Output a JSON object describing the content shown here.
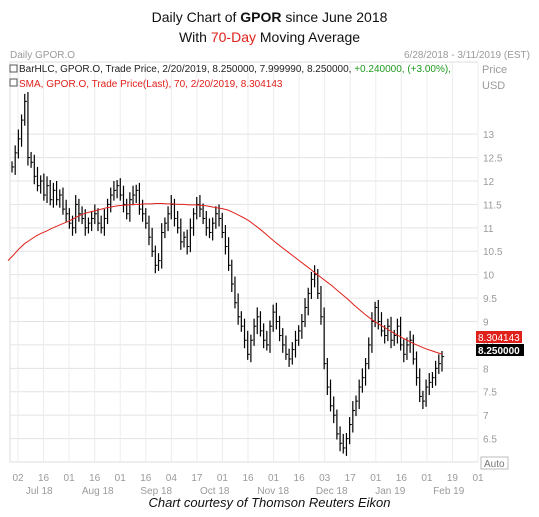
{
  "header": {
    "line1_pre": "Daily Chart of ",
    "line1_bold": "GPOR",
    "line1_post": " since June 2018",
    "line2_pre": "With ",
    "line2_red": "70-Day",
    "line2_post": " Moving Average"
  },
  "panel": {
    "name": "Daily GPOR.O",
    "date_range": "6/28/2018 - 3/11/2019 (EST)",
    "axis_title_1": "Price",
    "axis_title_2": "USD",
    "legend_bar_pre": "BarHLC, GPOR.O, Trade Price, 2/20/2019, 8.250000, 7.999990, 8.250000, ",
    "legend_bar_change": "+0.240000, (+3.00%),",
    "legend_sma": "SMA, GPOR.O, Trade Price(Last), 70, 2/20/2019, 8.304143",
    "sma_label": "8.304143",
    "price_label": "8.250000",
    "auto_label": "Auto"
  },
  "credit": "Chart courtesy of Thomson Reuters Eikon",
  "colors": {
    "bars": "#000000",
    "sma": "#e0201b",
    "grid": "#dcdcdc",
    "text_gray": "#9a9a9a"
  },
  "chart_data": {
    "type": "line",
    "series": [
      {
        "name": "BarHLC, GPOR.O",
        "kind": "bar_hlc",
        "values": [
          12.3,
          12.6,
          12.9,
          13.3,
          13.7,
          12.5,
          12.4,
          12.1,
          11.9,
          12.0,
          11.7,
          11.9,
          11.6,
          11.8,
          11.6,
          11.7,
          11.4,
          11.3,
          11.1,
          11.0,
          11.5,
          11.3,
          11.2,
          11.0,
          11.1,
          11.2,
          11.3,
          11.1,
          11.0,
          11.2,
          11.5,
          11.7,
          11.8,
          11.9,
          11.7,
          11.5,
          11.3,
          11.6,
          11.7,
          11.8,
          11.4,
          11.3,
          11.1,
          10.8,
          10.5,
          10.2,
          10.3,
          10.9,
          11.1,
          11.3,
          11.5,
          11.2,
          11.0,
          10.7,
          10.8,
          10.6,
          11.0,
          11.3,
          11.5,
          11.4,
          11.2,
          11.0,
          10.9,
          11.1,
          11.3,
          11.2,
          10.9,
          10.6,
          10.2,
          9.8,
          9.4,
          9.1,
          8.9,
          8.6,
          8.3,
          8.6,
          8.9,
          9.1,
          8.8,
          8.6,
          8.5,
          8.9,
          9.2,
          9.0,
          8.7,
          8.5,
          8.3,
          8.2,
          8.4,
          8.6,
          8.8,
          9.0,
          9.3,
          9.6,
          9.9,
          10.0,
          9.6,
          9.1,
          8.1,
          7.6,
          7.2,
          7.0,
          6.6,
          6.4,
          6.3,
          6.5,
          6.8,
          7.1,
          7.3,
          7.6,
          7.8,
          8.1,
          8.5,
          9.0,
          9.3,
          9.0,
          8.8,
          8.7,
          8.9,
          8.6,
          8.7,
          8.9,
          8.5,
          8.3,
          8.5,
          8.6,
          8.2,
          7.8,
          7.4,
          7.3,
          7.6,
          7.7,
          7.8,
          8.0,
          8.1,
          8.25
        ]
      },
      {
        "name": "SMA, GPOR.O, 70",
        "kind": "line",
        "values": [
          10.3,
          10.42,
          10.55,
          10.66,
          10.74,
          10.82,
          10.88,
          10.93,
          10.99,
          11.04,
          11.09,
          11.14,
          11.2,
          11.26,
          11.31,
          11.34,
          11.37,
          11.4,
          11.43,
          11.45,
          11.47,
          11.48,
          11.49,
          11.5,
          11.5,
          11.51,
          11.51,
          11.52,
          11.52,
          11.51,
          11.51,
          11.5,
          11.5,
          11.49,
          11.49,
          11.48,
          11.47,
          11.45,
          11.43,
          11.41,
          11.38,
          11.33,
          11.27,
          11.21,
          11.14,
          11.05,
          10.96,
          10.86,
          10.76,
          10.66,
          10.57,
          10.48,
          10.39,
          10.3,
          10.21,
          10.12,
          10.03,
          9.94,
          9.85,
          9.76,
          9.66,
          9.56,
          9.46,
          9.35,
          9.25,
          9.15,
          9.06,
          8.98,
          8.91,
          8.84,
          8.77,
          8.7,
          8.64,
          8.58,
          8.52,
          8.47,
          8.42,
          8.38,
          8.34,
          8.304
        ]
      }
    ],
    "y_ticks": [
      6.5,
      7,
      7.5,
      8,
      8.5,
      9,
      9.5,
      10,
      10.5,
      11,
      11.5,
      12,
      12.5,
      13
    ],
    "ylim": [
      6.0,
      13.9
    ],
    "x_ticks_top": [
      "02",
      "16",
      "01",
      "16",
      "01",
      "16",
      "04",
      "17",
      "01",
      "16",
      "01",
      "16",
      "03",
      "17",
      "01",
      "16",
      "01",
      "19",
      "01"
    ],
    "x_ticks_bottom": [
      "Jul 18",
      "Aug 18",
      "Sep 18",
      "Oct 18",
      "Nov 18",
      "Dec 18",
      "Jan 19",
      "Feb 19"
    ],
    "grid": true
  }
}
